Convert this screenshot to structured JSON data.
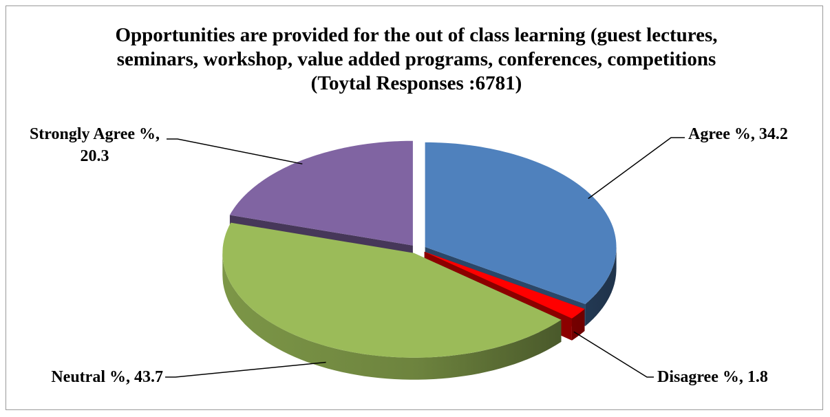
{
  "chart_data": {
    "type": "pie",
    "title": "Opportunities are provided for the out of class learning (guest lectures, seminars, workshop, value added programs, conferences, competitions (Toytal Responses :6781)",
    "values": [
      34.2,
      1.8,
      43.7,
      20.3
    ],
    "value_labels": [
      "Agree %, 34.2",
      "Disagree %, 1.8",
      "Neutral %, 43.7",
      "Strongly Agree %, 20.3"
    ],
    "colors": [
      "#4f81bd",
      "#ff0000",
      "#9bbb59",
      "#8064a2"
    ]
  }
}
